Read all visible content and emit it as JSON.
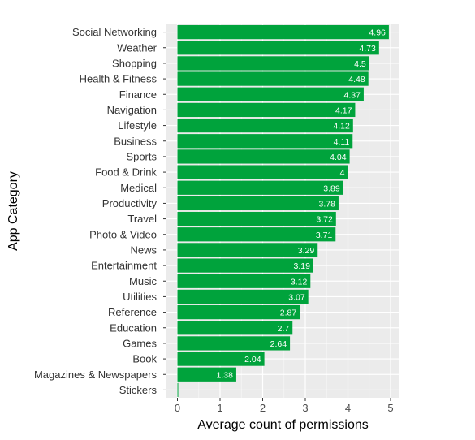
{
  "chart_data": {
    "type": "bar",
    "orientation": "horizontal",
    "xlabel": "Average count of permissions",
    "ylabel": "App Category",
    "xlim": [
      0,
      5.2
    ],
    "xticks": [
      0,
      1,
      2,
      3,
      4,
      5
    ],
    "grid": true,
    "bar_color": "#00a33c",
    "panel_color": "#ebebeb",
    "categories": [
      "Social Networking",
      "Weather",
      "Shopping",
      "Health & Fitness",
      "Finance",
      "Navigation",
      "Lifestyle",
      "Business",
      "Sports",
      "Food & Drink",
      "Medical",
      "Productivity",
      "Travel",
      "Photo & Video",
      "News",
      "Entertainment",
      "Music",
      "Utilities",
      "Reference",
      "Education",
      "Games",
      "Book",
      "Magazines & Newspapers",
      "Stickers"
    ],
    "values": [
      4.96,
      4.73,
      4.5,
      4.48,
      4.37,
      4.17,
      4.12,
      4.11,
      4.04,
      4,
      3.89,
      3.78,
      3.72,
      3.71,
      3.29,
      3.19,
      3.12,
      3.07,
      2.87,
      2.7,
      2.64,
      2.04,
      1.38,
      0.01
    ],
    "data_labels": [
      "4.96",
      "4.73",
      "4.5",
      "4.48",
      "4.37",
      "4.17",
      "4.12",
      "4.11",
      "4.04",
      "4",
      "3.89",
      "3.78",
      "3.72",
      "3.71",
      "3.29",
      "3.19",
      "3.12",
      "3.07",
      "2.87",
      "2.7",
      "2.64",
      "2.04",
      "1.38",
      ""
    ]
  }
}
